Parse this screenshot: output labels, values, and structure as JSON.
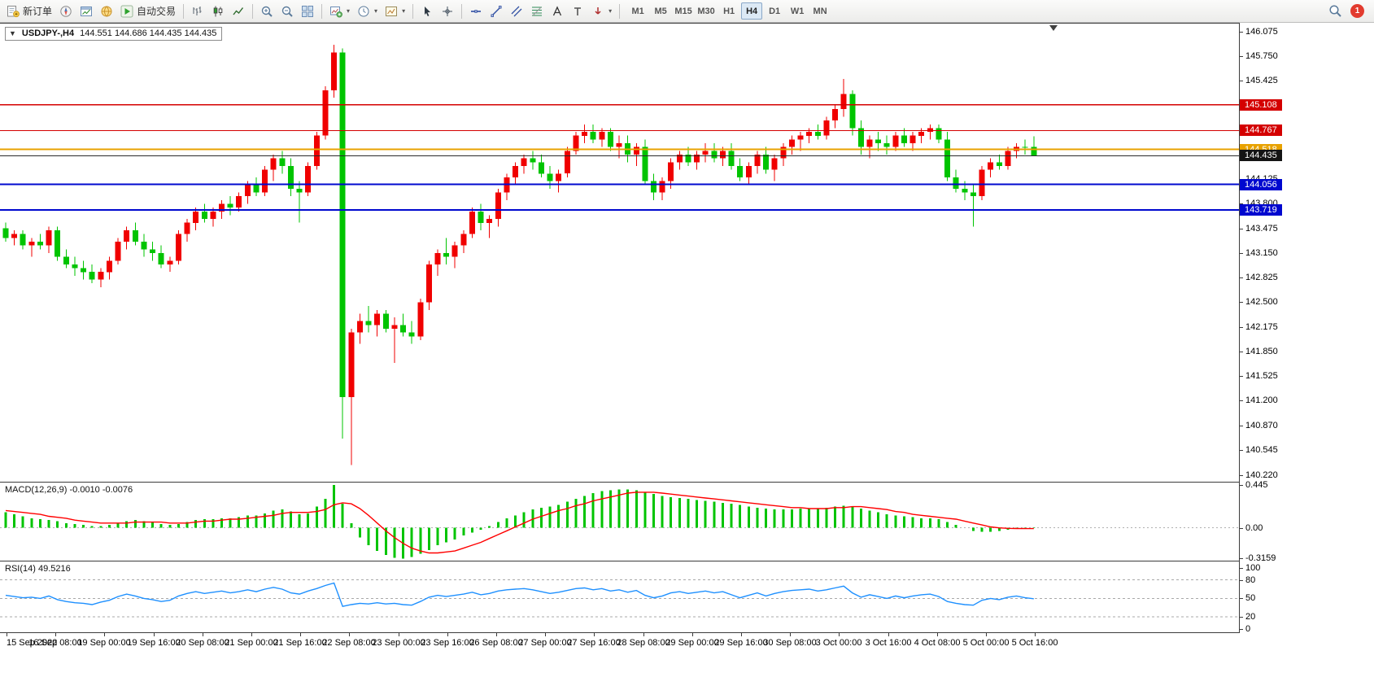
{
  "toolbar": {
    "new_order_label": "新订单",
    "auto_trading_label": "自动交易",
    "timeframes": [
      "M1",
      "M5",
      "M15",
      "M30",
      "H1",
      "H4",
      "D1",
      "W1",
      "MN"
    ],
    "active_timeframe": "H4",
    "notification_count": "1"
  },
  "icons": {
    "expander": "▼",
    "caret": "▾"
  },
  "chart_header": {
    "symbol_period": "USDJPY-,H4",
    "ohlc": "144.551 144.686 144.435 144.435"
  },
  "price_axis": {
    "labels": [
      "146.075",
      "145.750",
      "145.425",
      "145.100",
      "144.775",
      "144.450",
      "144.125",
      "143.800",
      "143.475",
      "143.150",
      "142.825",
      "142.500",
      "142.175",
      "141.850",
      "141.525",
      "141.200",
      "140.870",
      "140.545",
      "140.220"
    ],
    "badges": [
      {
        "value": "145.108",
        "price": 145.108,
        "color": "#d40000"
      },
      {
        "value": "144.767",
        "price": 144.767,
        "color": "#d40000"
      },
      {
        "value": "144.518",
        "price": 144.518,
        "color": "#e8a200"
      },
      {
        "value": "144.435",
        "price": 144.435,
        "color": "#141414"
      },
      {
        "value": "144.056",
        "price": 144.056,
        "color": "#0008cf"
      },
      {
        "value": "143.719",
        "price": 143.719,
        "color": "#0008cf"
      }
    ]
  },
  "time_axis": [
    "15 Sep 2022",
    "16 Sep 08:00",
    "19 Sep 00:00",
    "19 Sep 16:00",
    "20 Sep 08:00",
    "21 Sep 00:00",
    "21 Sep 16:00",
    "22 Sep 08:00",
    "23 Sep 00:00",
    "23 Sep 16:00",
    "26 Sep 08:00",
    "27 Sep 00:00",
    "27 Sep 16:00",
    "28 Sep 08:00",
    "29 Sep 00:00",
    "29 Sep 16:00",
    "30 Sep 08:00",
    "3 Oct 00:00",
    "3 Oct 16:00",
    "4 Oct 08:00",
    "5 Oct 00:00",
    "5 Oct 16:00"
  ],
  "indicators": {
    "macd": {
      "label": "MACD(12,26,9)",
      "values_text": "-0.0010 -0.0076",
      "axis": [
        "0.445",
        "0.00",
        "-0.3159"
      ]
    },
    "rsi": {
      "label": "RSI(14)",
      "value_text": "49.5216",
      "axis": [
        "100",
        "80",
        "50",
        "20",
        "0"
      ]
    }
  },
  "colors": {
    "bull": "#f00000",
    "bear": "#00c400",
    "macd_hist": "#00c400",
    "macd_signal": "#ff0000",
    "rsi_line": "#1e90ff",
    "level_red": "#d40000",
    "level_gold": "#e8a200",
    "level_blue": "#0008cf"
  },
  "chart_data": {
    "type": "candlestick",
    "symbol": "USDJPY-",
    "period": "H4",
    "ylim": [
      140.13,
      146.18
    ],
    "hlines": [
      {
        "price": 145.108,
        "color": "#d40000",
        "width": 1.2
      },
      {
        "price": 144.767,
        "color": "#d40000",
        "width": 1.2
      },
      {
        "price": 144.518,
        "color": "#e8a200",
        "width": 2
      },
      {
        "price": 144.435,
        "color": "#2a2a2a",
        "width": 1
      },
      {
        "price": 144.056,
        "color": "#0008cf",
        "width": 2
      },
      {
        "price": 143.719,
        "color": "#0008cf",
        "width": 2
      }
    ],
    "candles": [
      [
        143.48,
        143.55,
        143.3,
        143.35
      ],
      [
        143.35,
        143.45,
        143.25,
        143.4
      ],
      [
        143.4,
        143.45,
        143.2,
        143.25
      ],
      [
        143.25,
        143.35,
        143.1,
        143.3
      ],
      [
        143.3,
        143.4,
        143.2,
        143.25
      ],
      [
        143.25,
        143.5,
        143.15,
        143.45
      ],
      [
        143.45,
        143.5,
        143.05,
        143.1
      ],
      [
        143.1,
        143.2,
        142.95,
        143.0
      ],
      [
        143.0,
        143.1,
        142.85,
        142.95
      ],
      [
        142.95,
        143.05,
        142.8,
        142.9
      ],
      [
        142.9,
        143.0,
        142.75,
        142.8
      ],
      [
        142.8,
        142.95,
        142.7,
        142.9
      ],
      [
        142.9,
        143.1,
        142.8,
        143.05
      ],
      [
        143.05,
        143.35,
        143.0,
        143.3
      ],
      [
        143.3,
        143.5,
        143.2,
        143.45
      ],
      [
        143.45,
        143.55,
        143.25,
        143.3
      ],
      [
        143.3,
        143.4,
        143.1,
        143.2
      ],
      [
        143.2,
        143.3,
        143.05,
        143.15
      ],
      [
        143.15,
        143.25,
        142.95,
        143.0
      ],
      [
        143.0,
        143.1,
        142.9,
        143.05
      ],
      [
        143.05,
        143.45,
        143.0,
        143.4
      ],
      [
        143.4,
        143.6,
        143.3,
        143.55
      ],
      [
        143.55,
        143.75,
        143.45,
        143.7
      ],
      [
        143.7,
        143.8,
        143.55,
        143.6
      ],
      [
        143.6,
        143.75,
        143.5,
        143.7
      ],
      [
        143.7,
        143.85,
        143.6,
        143.8
      ],
      [
        143.8,
        143.9,
        143.65,
        143.75
      ],
      [
        143.75,
        143.95,
        143.7,
        143.9
      ],
      [
        143.9,
        144.1,
        143.8,
        144.05
      ],
      [
        144.05,
        144.15,
        143.9,
        143.95
      ],
      [
        143.95,
        144.3,
        143.9,
        144.25
      ],
      [
        144.25,
        144.45,
        144.1,
        144.4
      ],
      [
        144.4,
        144.5,
        144.2,
        144.3
      ],
      [
        144.3,
        144.4,
        143.9,
        144.0
      ],
      [
        144.0,
        144.1,
        143.55,
        143.95
      ],
      [
        143.95,
        144.35,
        143.9,
        144.3
      ],
      [
        144.3,
        144.75,
        144.25,
        144.7
      ],
      [
        144.7,
        145.35,
        144.65,
        145.3
      ],
      [
        145.3,
        145.9,
        145.2,
        145.8
      ],
      [
        145.8,
        145.85,
        140.7,
        141.25
      ],
      [
        141.25,
        142.15,
        140.35,
        142.1
      ],
      [
        142.1,
        142.35,
        141.95,
        142.25
      ],
      [
        142.25,
        142.45,
        142.1,
        142.2
      ],
      [
        142.2,
        142.4,
        142.05,
        142.35
      ],
      [
        142.35,
        142.4,
        142.1,
        142.15
      ],
      [
        142.15,
        142.3,
        141.7,
        142.2
      ],
      [
        142.2,
        142.35,
        142.05,
        142.1
      ],
      [
        142.1,
        142.25,
        141.95,
        142.05
      ],
      [
        142.05,
        142.55,
        142.0,
        142.5
      ],
      [
        142.5,
        143.05,
        142.4,
        143.0
      ],
      [
        143.0,
        143.2,
        142.85,
        143.15
      ],
      [
        143.15,
        143.35,
        143.0,
        143.1
      ],
      [
        143.1,
        143.3,
        142.95,
        143.25
      ],
      [
        143.25,
        143.45,
        143.15,
        143.4
      ],
      [
        143.4,
        143.75,
        143.35,
        143.7
      ],
      [
        143.7,
        143.8,
        143.45,
        143.55
      ],
      [
        143.55,
        143.65,
        143.35,
        143.6
      ],
      [
        143.6,
        144.0,
        143.5,
        143.95
      ],
      [
        143.95,
        144.2,
        143.85,
        144.15
      ],
      [
        144.15,
        144.35,
        144.05,
        144.3
      ],
      [
        144.3,
        144.45,
        144.2,
        144.4
      ],
      [
        144.4,
        144.5,
        144.25,
        144.35
      ],
      [
        144.35,
        144.45,
        144.15,
        144.2
      ],
      [
        144.2,
        144.3,
        144.0,
        144.1
      ],
      [
        144.1,
        144.25,
        143.95,
        144.2
      ],
      [
        144.2,
        144.55,
        144.15,
        144.5
      ],
      [
        144.5,
        144.75,
        144.45,
        144.7
      ],
      [
        144.7,
        144.85,
        144.6,
        144.75
      ],
      [
        144.75,
        144.85,
        144.6,
        144.65
      ],
      [
        144.65,
        144.8,
        144.55,
        144.75
      ],
      [
        144.75,
        144.8,
        144.5,
        144.55
      ],
      [
        144.55,
        144.7,
        144.4,
        144.6
      ],
      [
        144.6,
        144.7,
        144.35,
        144.45
      ],
      [
        144.45,
        144.6,
        144.3,
        144.55
      ],
      [
        144.55,
        144.65,
        144.05,
        144.1
      ],
      [
        144.1,
        144.2,
        143.85,
        143.95
      ],
      [
        143.95,
        144.15,
        143.85,
        144.1
      ],
      [
        144.1,
        144.4,
        144.0,
        144.35
      ],
      [
        144.35,
        144.5,
        144.25,
        144.45
      ],
      [
        144.45,
        144.55,
        144.3,
        144.35
      ],
      [
        144.35,
        144.5,
        144.25,
        144.45
      ],
      [
        144.45,
        144.6,
        144.35,
        144.5
      ],
      [
        144.5,
        144.6,
        144.35,
        144.4
      ],
      [
        144.4,
        144.55,
        144.3,
        144.5
      ],
      [
        144.5,
        144.6,
        144.25,
        144.3
      ],
      [
        144.3,
        144.4,
        144.1,
        144.15
      ],
      [
        144.15,
        144.35,
        144.05,
        144.3
      ],
      [
        144.3,
        144.5,
        144.2,
        144.45
      ],
      [
        144.45,
        144.55,
        144.2,
        144.25
      ],
      [
        144.25,
        144.45,
        144.1,
        144.4
      ],
      [
        144.4,
        144.6,
        144.3,
        144.55
      ],
      [
        144.55,
        144.7,
        144.45,
        144.65
      ],
      [
        144.65,
        144.75,
        144.5,
        144.7
      ],
      [
        144.7,
        144.8,
        144.6,
        144.75
      ],
      [
        144.75,
        144.85,
        144.65,
        144.7
      ],
      [
        144.7,
        144.95,
        144.65,
        144.9
      ],
      [
        144.9,
        145.1,
        144.8,
        145.05
      ],
      [
        145.05,
        145.45,
        144.95,
        145.25
      ],
      [
        145.25,
        145.3,
        144.7,
        144.8
      ],
      [
        144.8,
        144.9,
        144.45,
        144.55
      ],
      [
        144.55,
        144.7,
        144.4,
        144.65
      ],
      [
        144.65,
        144.75,
        144.5,
        144.6
      ],
      [
        144.6,
        144.7,
        144.45,
        144.55
      ],
      [
        144.55,
        144.75,
        144.5,
        144.7
      ],
      [
        144.7,
        144.8,
        144.55,
        144.6
      ],
      [
        144.6,
        144.75,
        144.5,
        144.7
      ],
      [
        144.7,
        144.8,
        144.6,
        144.75
      ],
      [
        144.75,
        144.85,
        144.65,
        144.8
      ],
      [
        144.8,
        144.85,
        144.6,
        144.65
      ],
      [
        144.65,
        144.75,
        144.1,
        144.15
      ],
      [
        144.15,
        144.25,
        143.95,
        144.0
      ],
      [
        144.0,
        144.1,
        143.85,
        143.95
      ],
      [
        143.95,
        144.05,
        143.5,
        143.9
      ],
      [
        143.9,
        144.3,
        143.85,
        144.25
      ],
      [
        144.25,
        144.4,
        144.15,
        144.35
      ],
      [
        144.35,
        144.45,
        144.25,
        144.3
      ],
      [
        144.3,
        144.55,
        144.25,
        144.5
      ],
      [
        144.5,
        144.6,
        144.4,
        144.55
      ],
      [
        144.55,
        144.65,
        144.45,
        144.55
      ],
      [
        144.55,
        144.69,
        144.44,
        144.44
      ]
    ],
    "macd": {
      "ylim": [
        -0.34,
        0.47
      ],
      "hist": [
        0.16,
        0.14,
        0.12,
        0.1,
        0.09,
        0.08,
        0.07,
        0.05,
        0.04,
        0.03,
        0.02,
        0.02,
        0.03,
        0.05,
        0.07,
        0.08,
        0.07,
        0.06,
        0.04,
        0.03,
        0.04,
        0.06,
        0.08,
        0.09,
        0.09,
        0.1,
        0.1,
        0.11,
        0.13,
        0.13,
        0.15,
        0.18,
        0.19,
        0.17,
        0.14,
        0.15,
        0.22,
        0.3,
        0.445,
        0.25,
        0.05,
        -0.1,
        -0.18,
        -0.24,
        -0.28,
        -0.31,
        -0.32,
        -0.3,
        -0.27,
        -0.23,
        -0.18,
        -0.15,
        -0.12,
        -0.08,
        -0.05,
        -0.02,
        0.02,
        0.06,
        0.1,
        0.13,
        0.16,
        0.19,
        0.21,
        0.22,
        0.24,
        0.27,
        0.3,
        0.33,
        0.36,
        0.38,
        0.39,
        0.4,
        0.4,
        0.39,
        0.37,
        0.35,
        0.33,
        0.32,
        0.31,
        0.3,
        0.29,
        0.28,
        0.27,
        0.26,
        0.25,
        0.24,
        0.22,
        0.21,
        0.2,
        0.19,
        0.19,
        0.19,
        0.2,
        0.2,
        0.2,
        0.21,
        0.22,
        0.23,
        0.22,
        0.2,
        0.18,
        0.16,
        0.14,
        0.13,
        0.12,
        0.11,
        0.1,
        0.1,
        0.09,
        0.06,
        0.03,
        0.0,
        -0.03,
        -0.04,
        -0.04,
        -0.03,
        -0.02,
        -0.01,
        -0.005,
        -0.001
      ],
      "signal": [
        0.18,
        0.17,
        0.16,
        0.15,
        0.14,
        0.12,
        0.11,
        0.1,
        0.08,
        0.07,
        0.06,
        0.05,
        0.05,
        0.05,
        0.05,
        0.06,
        0.06,
        0.06,
        0.06,
        0.05,
        0.05,
        0.05,
        0.06,
        0.07,
        0.07,
        0.08,
        0.09,
        0.09,
        0.1,
        0.11,
        0.12,
        0.13,
        0.15,
        0.16,
        0.16,
        0.16,
        0.17,
        0.19,
        0.24,
        0.26,
        0.25,
        0.2,
        0.13,
        0.05,
        -0.03,
        -0.1,
        -0.16,
        -0.21,
        -0.24,
        -0.26,
        -0.26,
        -0.25,
        -0.24,
        -0.21,
        -0.18,
        -0.15,
        -0.11,
        -0.07,
        -0.03,
        0.01,
        0.05,
        0.09,
        0.12,
        0.15,
        0.18,
        0.2,
        0.23,
        0.25,
        0.28,
        0.3,
        0.32,
        0.34,
        0.36,
        0.37,
        0.37,
        0.37,
        0.36,
        0.35,
        0.34,
        0.33,
        0.32,
        0.31,
        0.3,
        0.29,
        0.28,
        0.27,
        0.26,
        0.25,
        0.24,
        0.23,
        0.22,
        0.21,
        0.21,
        0.2,
        0.2,
        0.2,
        0.21,
        0.21,
        0.22,
        0.22,
        0.21,
        0.2,
        0.19,
        0.17,
        0.16,
        0.14,
        0.13,
        0.12,
        0.11,
        0.1,
        0.09,
        0.07,
        0.05,
        0.03,
        0.01,
        0.0,
        -0.005,
        -0.007,
        -0.0076,
        -0.0076
      ]
    },
    "rsi": {
      "ylim": [
        -5,
        110
      ],
      "levels": [
        80,
        50,
        20
      ],
      "values": [
        55,
        53,
        51,
        52,
        50,
        54,
        48,
        45,
        43,
        42,
        40,
        44,
        47,
        53,
        57,
        54,
        50,
        48,
        45,
        47,
        54,
        58,
        61,
        58,
        60,
        62,
        59,
        61,
        64,
        61,
        65,
        68,
        65,
        59,
        57,
        62,
        66,
        71,
        75,
        37,
        40,
        42,
        41,
        43,
        41,
        42,
        40,
        39,
        45,
        52,
        55,
        53,
        55,
        57,
        60,
        56,
        58,
        62,
        64,
        65,
        66,
        64,
        61,
        58,
        60,
        63,
        66,
        67,
        64,
        66,
        62,
        64,
        60,
        63,
        55,
        51,
        54,
        59,
        61,
        58,
        60,
        62,
        59,
        61,
        56,
        51,
        55,
        59,
        54,
        58,
        61,
        63,
        64,
        65,
        62,
        64,
        67,
        70,
        59,
        52,
        56,
        53,
        50,
        54,
        51,
        54,
        56,
        57,
        53,
        45,
        42,
        40,
        39,
        47,
        50,
        48,
        52,
        54,
        51,
        49.5
      ]
    }
  }
}
